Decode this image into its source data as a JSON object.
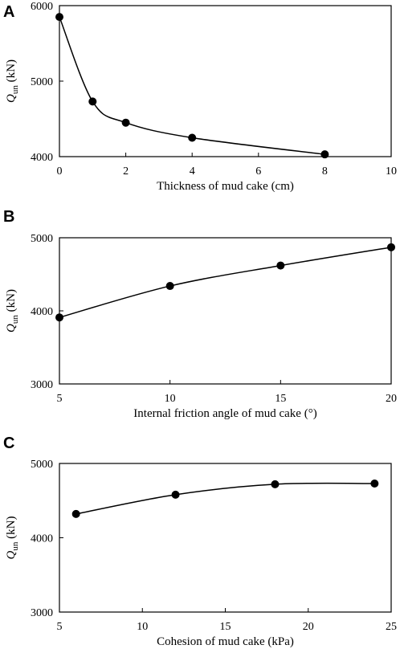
{
  "chart_data": [
    {
      "type": "line",
      "panel_label": "A",
      "title": "",
      "xlabel": "Thickness of mud cake (cm)",
      "ylabel": "Q",
      "ylabel_sub": "un",
      "ylabel_unit": " (kN)",
      "xlim": [
        0,
        10
      ],
      "ylim": [
        4000,
        6000
      ],
      "xticks": [
        0,
        2,
        4,
        6,
        8,
        10
      ],
      "yticks": [
        4000,
        5000,
        6000
      ],
      "grid": false,
      "series": [
        {
          "x": [
            0,
            1,
            2,
            4,
            8
          ],
          "y": [
            5850,
            4730,
            4450,
            4250,
            4030
          ]
        }
      ]
    },
    {
      "type": "line",
      "panel_label": "B",
      "title": "",
      "xlabel": "Internal friction angle of mud cake (°)",
      "ylabel": "Q",
      "ylabel_sub": "un",
      "ylabel_unit": " (kN)",
      "xlim": [
        5,
        20
      ],
      "ylim": [
        3000,
        5000
      ],
      "xticks": [
        5,
        10,
        15,
        20
      ],
      "yticks": [
        3000,
        4000,
        5000
      ],
      "grid": false,
      "series": [
        {
          "x": [
            5,
            10,
            15,
            20
          ],
          "y": [
            3910,
            4340,
            4620,
            4870
          ]
        }
      ]
    },
    {
      "type": "line",
      "panel_label": "C",
      "title": "",
      "xlabel": "Cohesion of mud cake (kPa)",
      "ylabel": "Q",
      "ylabel_sub": "un",
      "ylabel_unit": " (kN)",
      "xlim": [
        5,
        25
      ],
      "ylim": [
        3000,
        5000
      ],
      "xticks": [
        5,
        10,
        15,
        20,
        25
      ],
      "yticks": [
        3000,
        4000,
        5000
      ],
      "grid": false,
      "series": [
        {
          "x": [
            6,
            12,
            18,
            24
          ],
          "y": [
            4320,
            4580,
            4720,
            4730
          ]
        }
      ]
    }
  ]
}
